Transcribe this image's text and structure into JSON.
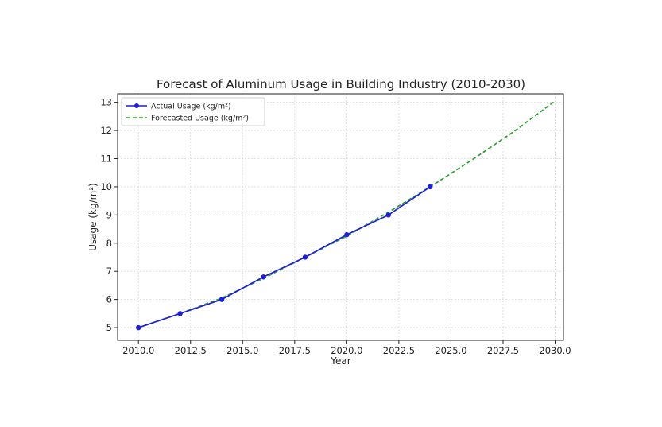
{
  "chart_data": {
    "type": "line",
    "title": "Forecast of Aluminum Usage in Building Industry (2010-2030)",
    "xlabel": "Year",
    "ylabel": "Usage (kg/m²)",
    "xlim": [
      2009.0,
      2030.4
    ],
    "ylim": [
      4.55,
      13.3
    ],
    "xticks": [
      2010.0,
      2012.5,
      2015.0,
      2017.5,
      2020.0,
      2022.5,
      2025.0,
      2027.5,
      2030.0
    ],
    "xtick_labels": [
      "2010.0",
      "2012.5",
      "2015.0",
      "2017.5",
      "2020.0",
      "2022.5",
      "2025.0",
      "2027.5",
      "2030.0"
    ],
    "yticks": [
      5,
      6,
      7,
      8,
      9,
      10,
      11,
      12,
      13
    ],
    "ytick_labels": [
      "5",
      "6",
      "7",
      "8",
      "9",
      "10",
      "11",
      "12",
      "13"
    ],
    "grid": true,
    "legend_position": "top-left",
    "series": [
      {
        "name": "Actual Usage (kg/m²)",
        "style": "solid",
        "marker": "circle",
        "color": "#1f1fd6",
        "x": [
          2010,
          2012,
          2014,
          2016,
          2018,
          2020,
          2022,
          2024
        ],
        "y": [
          5.0,
          5.5,
          6.0,
          6.8,
          7.5,
          8.3,
          9.0,
          10.0
        ]
      },
      {
        "name": "Forecasted Usage (kg/m²)",
        "style": "dashed",
        "marker": "none",
        "color": "#2ca02c",
        "x": [
          2010,
          2012,
          2014,
          2016,
          2018,
          2020,
          2022,
          2024,
          2026,
          2028,
          2030
        ],
        "y": [
          5.0,
          5.5,
          6.05,
          6.75,
          7.5,
          8.25,
          9.1,
          10.0,
          10.95,
          11.95,
          13.05
        ]
      }
    ]
  }
}
